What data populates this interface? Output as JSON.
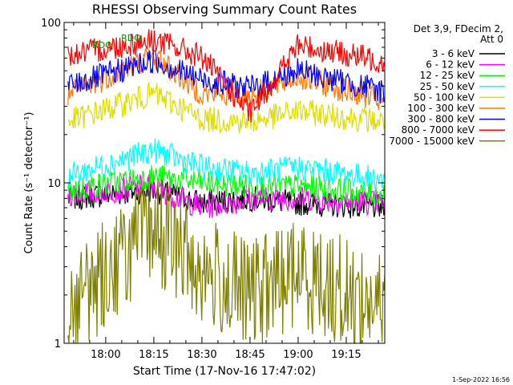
{
  "chart_data": {
    "type": "line",
    "title": "RHESSI Observing Summary Count Rates",
    "xlabel": "Start Time (17-Nov-16 17:47:02)",
    "ylabel": "Count Rate (s⁻¹ detector⁻¹)",
    "yscale": "log",
    "ylim": [
      1,
      100
    ],
    "xlim": [
      "17:47:02",
      "19:27:00"
    ],
    "x_tick_labels": [
      "18:00",
      "18:15",
      "18:30",
      "18:45",
      "19:00",
      "19:15"
    ],
    "y_tick_labels": [
      "1",
      "10",
      "100"
    ],
    "legend_header": [
      "Det 3,9, FDecim 2,",
      "Att 0"
    ],
    "legend_position": "right",
    "annotations": [
      {
        "text": "RDO",
        "color": "#008800"
      },
      {
        "text": "RDO",
        "color": "#008800"
      }
    ],
    "footer_date": "1-Sep-2022 16:56",
    "series": [
      {
        "name": "3 - 6 keV",
        "color": "#000000",
        "values": [
          [
            17.8,
            8.0
          ],
          [
            18.25,
            9.0
          ],
          [
            18.5,
            7.5
          ],
          [
            18.75,
            8.0
          ],
          [
            19.0,
            7.5
          ],
          [
            19.45,
            7.0
          ]
        ]
      },
      {
        "name": "6 - 12 keV",
        "color": "#ff00ff",
        "values": [
          [
            17.8,
            8.5
          ],
          [
            18.25,
            9.5
          ],
          [
            18.5,
            7.0
          ],
          [
            18.75,
            8.0
          ],
          [
            19.0,
            8.0
          ],
          [
            19.45,
            7.5
          ]
        ]
      },
      {
        "name": "12 - 25 keV",
        "color": "#00ff00",
        "values": [
          [
            17.8,
            9.0
          ],
          [
            18.25,
            11.0
          ],
          [
            18.5,
            10.0
          ],
          [
            18.75,
            9.5
          ],
          [
            19.0,
            9.5
          ],
          [
            19.45,
            8.5
          ]
        ]
      },
      {
        "name": "25 - 50 keV",
        "color": "#00ffff",
        "values": [
          [
            17.8,
            11.0
          ],
          [
            18.25,
            16.0
          ],
          [
            18.5,
            12.5
          ],
          [
            18.75,
            11.5
          ],
          [
            19.0,
            12.5
          ],
          [
            19.45,
            10.5
          ]
        ]
      },
      {
        "name": "50 - 100 keV",
        "color": "#dddd00",
        "values": [
          [
            17.8,
            24.0
          ],
          [
            18.25,
            36.0
          ],
          [
            18.5,
            25.0
          ],
          [
            18.75,
            24.0
          ],
          [
            19.0,
            28.0
          ],
          [
            19.45,
            24.0
          ]
        ]
      },
      {
        "name": "100 - 300 keV",
        "color": "#ff7700",
        "values": [
          [
            17.8,
            35.0
          ],
          [
            18.25,
            62.0
          ],
          [
            18.5,
            36.0
          ],
          [
            18.75,
            35.0
          ],
          [
            19.0,
            46.0
          ],
          [
            19.45,
            32.0
          ]
        ]
      },
      {
        "name": "300 - 800 keV",
        "color": "#0000ff",
        "values": [
          [
            17.8,
            40.0
          ],
          [
            18.25,
            58.0
          ],
          [
            18.5,
            44.0
          ],
          [
            18.75,
            39.0
          ],
          [
            19.0,
            50.0
          ],
          [
            19.45,
            37.0
          ]
        ]
      },
      {
        "name": "800 - 7000 keV",
        "color": "#ff0000",
        "values": [
          [
            17.8,
            62.0
          ],
          [
            18.25,
            78.0
          ],
          [
            18.5,
            61.0
          ],
          [
            18.75,
            27.0
          ],
          [
            19.0,
            72.0
          ],
          [
            19.45,
            57.0
          ]
        ]
      },
      {
        "name": "7000 - 15000 keV",
        "color": "#808000",
        "values": [
          [
            17.8,
            1.6
          ],
          [
            18.25,
            5.5
          ],
          [
            18.5,
            2.8
          ],
          [
            18.75,
            2.0
          ],
          [
            19.0,
            2.8
          ],
          [
            19.45,
            1.6
          ]
        ]
      }
    ]
  }
}
